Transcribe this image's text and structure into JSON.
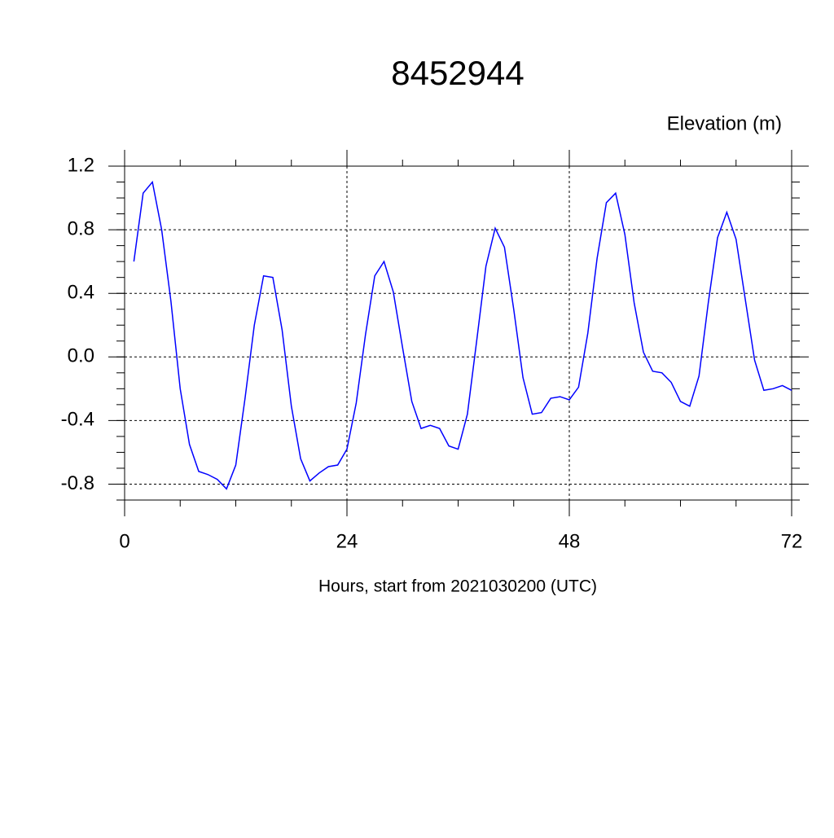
{
  "chart_data": {
    "type": "line",
    "title": "8452944",
    "y_label": "Elevation (m)",
    "x_label": "Hours, start from 2021030200 (UTC)",
    "x": [
      1,
      2,
      3,
      4,
      5,
      6,
      7,
      8,
      9,
      10,
      11,
      12,
      13,
      14,
      15,
      16,
      17,
      18,
      19,
      20,
      21,
      22,
      23,
      24,
      25,
      26,
      27,
      28,
      29,
      30,
      31,
      32,
      33,
      34,
      35,
      36,
      37,
      38,
      39,
      40,
      41,
      42,
      43,
      44,
      45,
      46,
      47,
      48,
      49,
      50,
      51,
      52,
      53,
      54,
      55,
      56,
      57,
      58,
      59,
      60,
      61,
      62,
      63,
      64,
      65,
      66,
      67,
      68,
      69,
      70,
      71,
      72
    ],
    "series": [
      {
        "color": "#0000ff",
        "values": [
          0.6,
          1.03,
          1.1,
          0.8,
          0.35,
          -0.2,
          -0.55,
          -0.72,
          -0.74,
          -0.77,
          -0.83,
          -0.68,
          -0.26,
          0.2,
          0.51,
          0.5,
          0.17,
          -0.31,
          -0.64,
          -0.78,
          -0.73,
          -0.69,
          -0.68,
          -0.58,
          -0.29,
          0.14,
          0.51,
          0.6,
          0.41,
          0.06,
          -0.28,
          -0.45,
          -0.43,
          -0.45,
          -0.56,
          -0.58,
          -0.36,
          0.1,
          0.57,
          0.81,
          0.69,
          0.3,
          -0.13,
          -0.36,
          -0.35,
          -0.26,
          -0.25,
          -0.27,
          -0.19,
          0.15,
          0.62,
          0.97,
          1.03,
          0.77,
          0.34,
          0.03,
          -0.09,
          -0.1,
          -0.16,
          -0.28,
          -0.31,
          -0.12,
          0.34,
          0.75,
          0.91,
          0.74,
          0.36,
          -0.02,
          -0.21,
          -0.2,
          -0.18,
          -0.21
        ]
      }
    ],
    "xlim": [
      0,
      72
    ],
    "xticks": [
      0,
      24,
      48,
      72
    ],
    "ylim": [
      -0.9,
      1.2
    ],
    "yticks": [
      1.2,
      0.8,
      0.4,
      {
        "value": 0,
        "label": "0.0"
      },
      -0.4,
      -0.8
    ],
    "grid": true
  }
}
